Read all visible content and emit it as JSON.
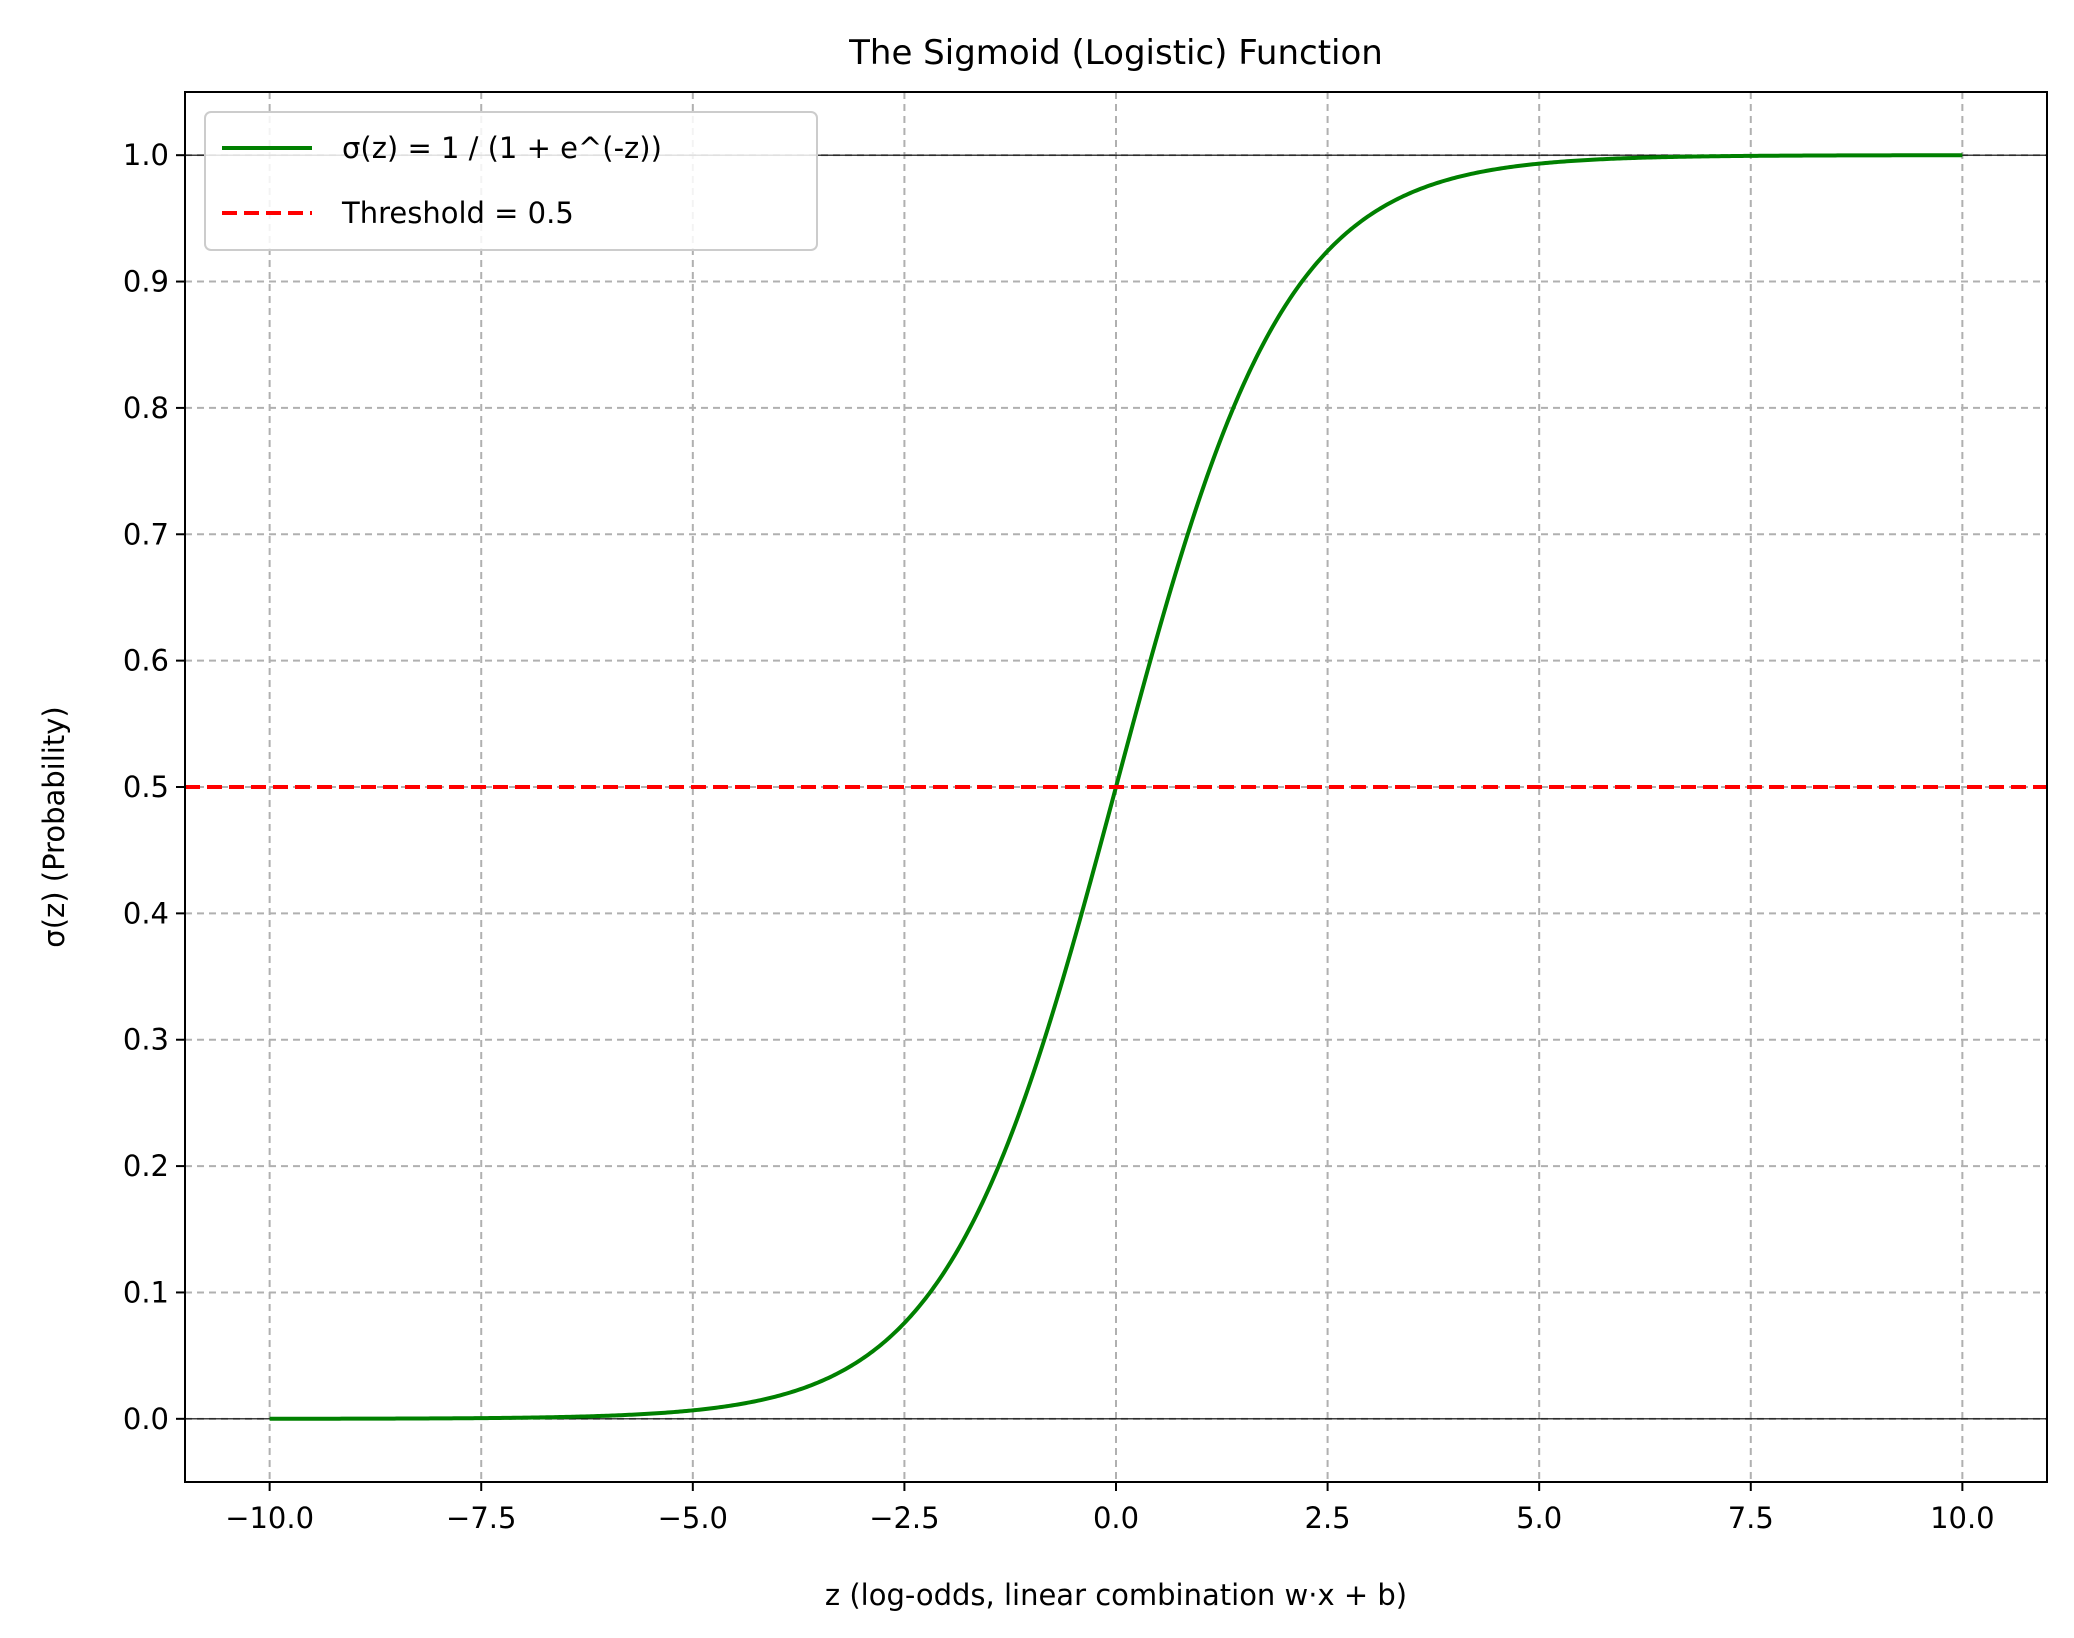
{
  "chart_data": {
    "type": "line",
    "title": "The Sigmoid (Logistic) Function",
    "xlabel": "z (log-odds, linear combination w·x + b)",
    "ylabel": "σ(z) (Probability)",
    "xlim": [
      -11,
      11
    ],
    "ylim": [
      -0.05,
      1.05
    ],
    "xticks": [
      -10.0,
      -7.5,
      -5.0,
      -2.5,
      0.0,
      2.5,
      5.0,
      7.5,
      10.0
    ],
    "xtick_labels": [
      "−10.0",
      "−7.5",
      "−5.0",
      "−2.5",
      "0.0",
      "2.5",
      "5.0",
      "7.5",
      "10.0"
    ],
    "yticks": [
      0.0,
      0.1,
      0.2,
      0.3,
      0.4,
      0.5,
      0.6,
      0.7,
      0.8,
      0.9,
      1.0
    ],
    "ytick_labels": [
      "0.0",
      "0.1",
      "0.2",
      "0.3",
      "0.4",
      "0.5",
      "0.6",
      "0.7",
      "0.8",
      "0.9",
      "1.0"
    ],
    "grid": true,
    "legend_position": "upper-left",
    "series": [
      {
        "name": "σ(z) = 1 / (1 + e^(-z))",
        "color": "#008000",
        "style": "solid",
        "x": [
          -10,
          -9,
          -8,
          -7,
          -6,
          -5,
          -4.5,
          -4,
          -3.5,
          -3,
          -2.5,
          -2,
          -1.5,
          -1,
          -0.5,
          0,
          0.5,
          1,
          1.5,
          2,
          2.5,
          3,
          3.5,
          4,
          4.5,
          5,
          6,
          7,
          8,
          9,
          10
        ],
        "y": [
          0.0,
          0.0001,
          0.0003,
          0.0009,
          0.0025,
          0.0067,
          0.011,
          0.018,
          0.0293,
          0.0474,
          0.0759,
          0.1192,
          0.1824,
          0.2689,
          0.3775,
          0.5,
          0.6225,
          0.7311,
          0.8176,
          0.8808,
          0.9241,
          0.9526,
          0.9707,
          0.982,
          0.989,
          0.9933,
          0.9975,
          0.9991,
          0.9997,
          0.9999,
          1.0
        ]
      },
      {
        "name": "Threshold = 0.5",
        "color": "#ff0000",
        "style": "dashed",
        "hline": 0.5
      }
    ],
    "reference_lines": [
      0.0,
      1.0
    ]
  }
}
